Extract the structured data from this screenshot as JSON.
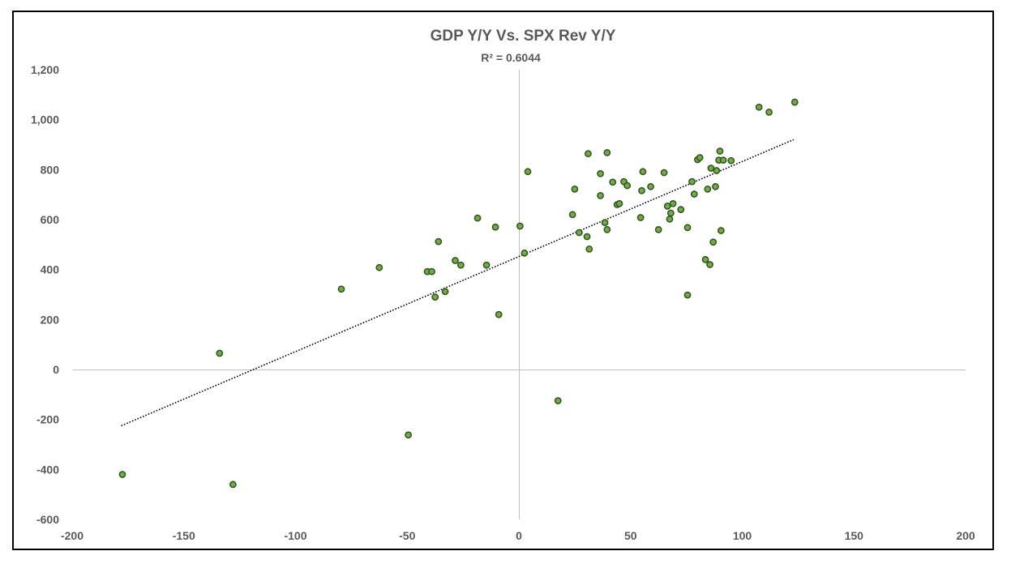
{
  "chart_data": {
    "type": "scatter",
    "title": "GDP Y/Y Vs. SPX Rev Y/Y",
    "subtitle": "R² = 0.6044",
    "xlabel": "",
    "ylabel": "",
    "xlim": [
      -200,
      200
    ],
    "ylim": [
      -600,
      1200
    ],
    "x_ticks": [
      -200,
      -150,
      -100,
      -50,
      0,
      50,
      100,
      150,
      200
    ],
    "y_ticks": [
      -600,
      -400,
      -200,
      0,
      200,
      400,
      600,
      800,
      1000,
      1200
    ],
    "x_tick_labels": [
      "-200",
      "-150",
      "-100",
      "-50",
      "0",
      "50",
      "100",
      "150",
      "200"
    ],
    "y_tick_labels": [
      "-600",
      "-400",
      "-200",
      "0",
      "200",
      "400",
      "600",
      "800",
      "1,000",
      "1,200"
    ],
    "grid": false,
    "marker_fill": "#70AD47",
    "marker_edge": "#375623",
    "trendline": {
      "type": "linear",
      "x": [
        -178,
        123
      ],
      "y": [
        -225,
        920
      ]
    },
    "points": [
      [
        -177.5,
        -420
      ],
      [
        -134,
        65
      ],
      [
        -128,
        -460
      ],
      [
        -79.5,
        322
      ],
      [
        -62.5,
        408
      ],
      [
        -49.5,
        -262
      ],
      [
        -41,
        392
      ],
      [
        -39,
        392
      ],
      [
        -37.5,
        290
      ],
      [
        -36,
        512
      ],
      [
        -33,
        312
      ],
      [
        -28.5,
        436
      ],
      [
        -26,
        418
      ],
      [
        -18.5,
        606
      ],
      [
        -14.5,
        418
      ],
      [
        -10.5,
        570
      ],
      [
        -9,
        220
      ],
      [
        0.5,
        574
      ],
      [
        2.5,
        466
      ],
      [
        4,
        792
      ],
      [
        17.5,
        -125
      ],
      [
        24,
        620
      ],
      [
        25,
        722
      ],
      [
        27,
        548
      ],
      [
        30.5,
        532
      ],
      [
        31,
        864
      ],
      [
        31.5,
        482
      ],
      [
        36.5,
        784
      ],
      [
        36.5,
        696
      ],
      [
        38.5,
        588
      ],
      [
        39.5,
        560
      ],
      [
        39.5,
        868
      ],
      [
        42,
        750
      ],
      [
        44,
        660
      ],
      [
        45,
        664
      ],
      [
        47,
        752
      ],
      [
        48.5,
        736
      ],
      [
        54.5,
        608
      ],
      [
        55,
        716
      ],
      [
        55.5,
        792
      ],
      [
        59,
        732
      ],
      [
        62.5,
        560
      ],
      [
        65,
        788
      ],
      [
        66.5,
        654
      ],
      [
        67.5,
        602
      ],
      [
        68,
        626
      ],
      [
        69,
        664
      ],
      [
        72.5,
        640
      ],
      [
        75.5,
        568
      ],
      [
        75.5,
        298
      ],
      [
        77.5,
        752
      ],
      [
        78.5,
        702
      ],
      [
        80,
        840
      ],
      [
        81,
        848
      ],
      [
        83.5,
        440
      ],
      [
        84.5,
        722
      ],
      [
        85.5,
        420
      ],
      [
        86,
        806
      ],
      [
        87,
        510
      ],
      [
        88,
        732
      ],
      [
        88.5,
        796
      ],
      [
        89.5,
        838
      ],
      [
        90,
        874
      ],
      [
        90.5,
        556
      ],
      [
        91.5,
        838
      ],
      [
        95,
        836
      ],
      [
        107.5,
        1050
      ],
      [
        112,
        1030
      ],
      [
        123.5,
        1070
      ]
    ]
  }
}
